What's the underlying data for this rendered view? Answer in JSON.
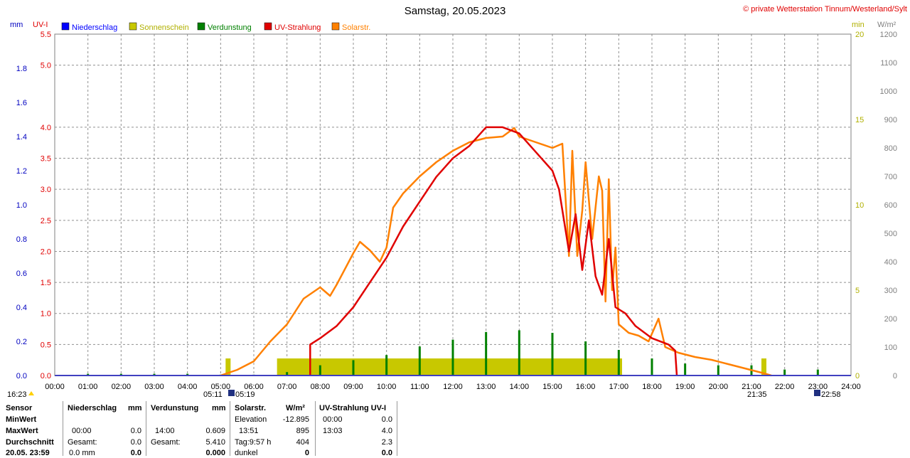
{
  "header": {
    "title": "Samstag, 20.05.2023",
    "copyright": "© private Wetterstation Tinnum/Westerland/Sylt"
  },
  "axes": {
    "left_unit_mm": "mm",
    "left_unit_uv": "UV-I",
    "right_unit_min": "min",
    "right_unit_wm2": "W/m²",
    "mm_ticks": [
      "0.0",
      "0.2",
      "0.4",
      "0.6",
      "0.8",
      "1.0",
      "1.2",
      "1.4",
      "1.6",
      "1.8"
    ],
    "uv_ticks": [
      "0.0",
      "0.5",
      "1.0",
      "1.5",
      "2.0",
      "2.5",
      "3.0",
      "3.5",
      "4.0",
      "5.0",
      "5.5"
    ],
    "min_ticks": [
      "0",
      "5",
      "10",
      "15",
      "20"
    ],
    "wm2_ticks": [
      "0",
      "100",
      "200",
      "300",
      "400",
      "500",
      "600",
      "700",
      "800",
      "900",
      "1000",
      "1100",
      "1200"
    ],
    "time_ticks": [
      "00:00",
      "01:00",
      "02:00",
      "03:00",
      "04:00",
      "05:00",
      "06:00",
      "07:00",
      "08:00",
      "09:00",
      "10:00",
      "11:00",
      "12:00",
      "13:00",
      "14:00",
      "15:00",
      "16:00",
      "17:00",
      "18:00",
      "19:00",
      "20:00",
      "21:00",
      "22:00",
      "23:00",
      "24:00"
    ]
  },
  "legend": [
    {
      "label": "Niederschlag",
      "color": "#0000ff"
    },
    {
      "label": "Sonnenschein",
      "color": "#c8c800"
    },
    {
      "label": "Verdunstung",
      "color": "#008000"
    },
    {
      "label": "UV-Strahlung",
      "color": "#e00000"
    },
    {
      "label": "Solarstr.",
      "color": "#ff8000"
    }
  ],
  "markers": {
    "left_time": "16:23",
    "sunrise": "05:11",
    "sunrise2": "05:19",
    "sunset": "21:35",
    "moon_time": "22:58"
  },
  "chart_data": {
    "type": "line",
    "x_unit": "hour",
    "xlim": [
      0,
      24
    ],
    "uv_ylim": [
      0,
      5.5
    ],
    "solar_ylim": [
      0,
      1200
    ],
    "sunshine_ylim": [
      0,
      20
    ],
    "grid": true,
    "series": [
      {
        "name": "UV-Strahlung",
        "color": "#e00000",
        "axis": "uv",
        "points": [
          [
            7.7,
            0
          ],
          [
            7.7,
            0.5
          ],
          [
            8,
            0.6
          ],
          [
            8.5,
            0.8
          ],
          [
            9,
            1.1
          ],
          [
            9.5,
            1.5
          ],
          [
            10,
            1.9
          ],
          [
            10.5,
            2.4
          ],
          [
            11,
            2.8
          ],
          [
            11.5,
            3.2
          ],
          [
            12,
            3.5
          ],
          [
            12.5,
            3.7
          ],
          [
            13,
            4.0
          ],
          [
            13.5,
            4.0
          ],
          [
            14,
            3.9
          ],
          [
            14.5,
            3.6
          ],
          [
            15,
            3.3
          ],
          [
            15.2,
            3.0
          ],
          [
            15.5,
            2.0
          ],
          [
            15.7,
            2.6
          ],
          [
            15.9,
            1.7
          ],
          [
            16.1,
            2.5
          ],
          [
            16.3,
            1.6
          ],
          [
            16.5,
            1.3
          ],
          [
            16.7,
            2.2
          ],
          [
            16.9,
            1.1
          ],
          [
            17.2,
            1.0
          ],
          [
            17.5,
            0.8
          ],
          [
            18,
            0.6
          ],
          [
            18.5,
            0.5
          ],
          [
            18.7,
            0.4
          ],
          [
            18.75,
            0
          ]
        ]
      },
      {
        "name": "Solarstr.",
        "color": "#ff8000",
        "axis": "solar",
        "points": [
          [
            5,
            0
          ],
          [
            5.5,
            20
          ],
          [
            6,
            50
          ],
          [
            6.5,
            120
          ],
          [
            7,
            180
          ],
          [
            7.5,
            270
          ],
          [
            8,
            310
          ],
          [
            8.3,
            280
          ],
          [
            8.5,
            320
          ],
          [
            9,
            430
          ],
          [
            9.2,
            470
          ],
          [
            9.5,
            440
          ],
          [
            9.8,
            400
          ],
          [
            10,
            450
          ],
          [
            10.2,
            590
          ],
          [
            10.5,
            640
          ],
          [
            11,
            700
          ],
          [
            11.5,
            750
          ],
          [
            12,
            790
          ],
          [
            12.5,
            820
          ],
          [
            13,
            835
          ],
          [
            13.5,
            840
          ],
          [
            13.85,
            870
          ],
          [
            14,
            840
          ],
          [
            14.5,
            820
          ],
          [
            15,
            800
          ],
          [
            15.3,
            815
          ],
          [
            15.5,
            420
          ],
          [
            15.6,
            790
          ],
          [
            15.75,
            420
          ],
          [
            15.9,
            580
          ],
          [
            16,
            750
          ],
          [
            16.2,
            480
          ],
          [
            16.4,
            700
          ],
          [
            16.5,
            650
          ],
          [
            16.6,
            260
          ],
          [
            16.7,
            690
          ],
          [
            16.8,
            300
          ],
          [
            16.9,
            450
          ],
          [
            17,
            180
          ],
          [
            17.3,
            150
          ],
          [
            17.6,
            140
          ],
          [
            17.9,
            120
          ],
          [
            18.2,
            200
          ],
          [
            18.4,
            100
          ],
          [
            18.8,
            80
          ],
          [
            19.3,
            65
          ],
          [
            19.8,
            55
          ],
          [
            20.3,
            40
          ],
          [
            20.8,
            25
          ],
          [
            21.3,
            10
          ],
          [
            21.6,
            0
          ]
        ]
      },
      {
        "name": "Sonnenschein",
        "color": "#c8c800",
        "axis": "sunshine",
        "intervals": [
          [
            6.7,
            17.1
          ],
          [
            5.15,
            5.3
          ],
          [
            21.3,
            21.45
          ]
        ],
        "level": 1
      }
    ],
    "verdunstung_bars": [
      {
        "x": 1,
        "v": 0.01
      },
      {
        "x": 2,
        "v": 0.01
      },
      {
        "x": 3,
        "v": 0.01
      },
      {
        "x": 4,
        "v": 0.01
      },
      {
        "x": 5,
        "v": 0.005
      },
      {
        "x": 6,
        "v": 0.005
      },
      {
        "x": 7,
        "v": 0.02
      },
      {
        "x": 8,
        "v": 0.06
      },
      {
        "x": 9,
        "v": 0.09
      },
      {
        "x": 10,
        "v": 0.12
      },
      {
        "x": 11,
        "v": 0.17
      },
      {
        "x": 12,
        "v": 0.21
      },
      {
        "x": 13,
        "v": 0.255
      },
      {
        "x": 14,
        "v": 0.265
      },
      {
        "x": 15,
        "v": 0.25
      },
      {
        "x": 16,
        "v": 0.2
      },
      {
        "x": 17,
        "v": 0.15
      },
      {
        "x": 18,
        "v": 0.1
      },
      {
        "x": 19,
        "v": 0.07
      },
      {
        "x": 20,
        "v": 0.06
      },
      {
        "x": 21,
        "v": 0.06
      },
      {
        "x": 22,
        "v": 0.035
      },
      {
        "x": 23,
        "v": 0.035
      }
    ],
    "verdunstung_ylim": [
      0,
      2.0
    ]
  },
  "stats": {
    "h_sensor": "Sensor",
    "h_nied": "Niederschlag",
    "h_nied_u": "mm",
    "h_verd": "Verdunstung",
    "h_verd_u": "mm",
    "h_solar": "Solarstr.",
    "h_solar_u": "W/m²",
    "h_uv": "UV-Strahlung UV-I",
    "r1": "MinWert",
    "r2": "MaxWert",
    "r3": "Durchschnitt",
    "r4": "20.05. 23:59",
    "solar_elev_label": "Elevation",
    "solar_elev": "-12.895",
    "uv_min_time": "00:00",
    "uv_min": "0.0",
    "nied_max_time": "00:00",
    "nied_max": "0.0",
    "verd_max_time": "14:00",
    "verd_max": "0.609",
    "solar_max_time": "13:51",
    "solar_max": "895",
    "uv_max_time": "13:03",
    "uv_max": "4.0",
    "gesamt": "Gesamt:",
    "nied_gesamt": "0.0",
    "verd_gesamt": "5.410",
    "solar_tag": "Tag:9:57 h",
    "solar_avg": "404",
    "uv_avg": "2.3",
    "nied_day": "0.0 mm",
    "nied_day_total": "0.0",
    "verd_day_total": "0.000",
    "solar_dunkel": "dunkel",
    "solar_dunkel_val": "0",
    "uv_day": "0.0"
  }
}
